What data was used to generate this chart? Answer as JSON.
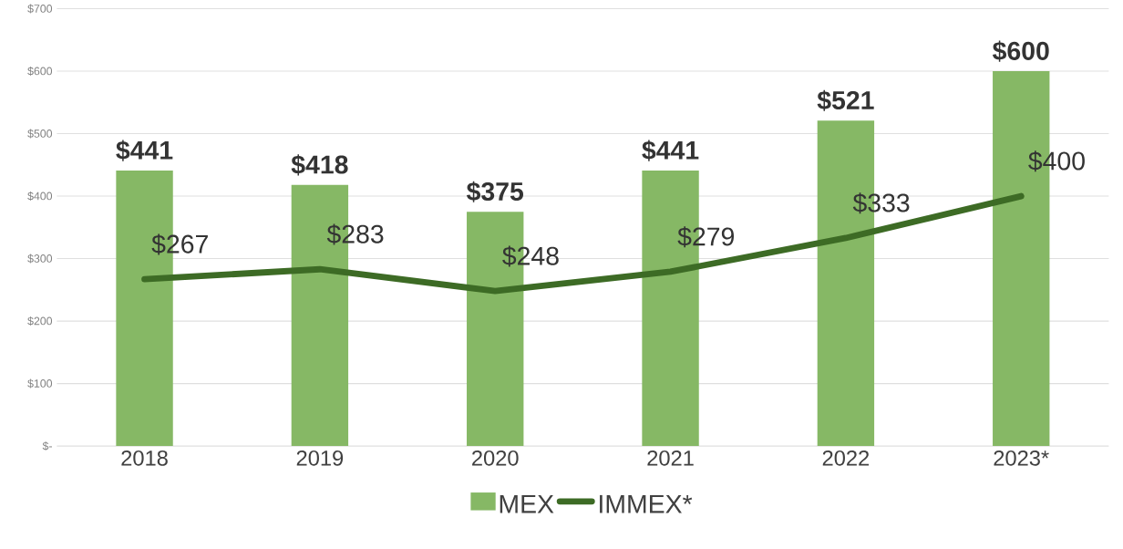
{
  "chart_data": {
    "type": "bar",
    "categories": [
      "2018",
      "2019",
      "2020",
      "2021",
      "2022",
      "2023*"
    ],
    "series": [
      {
        "name": "MEX",
        "color": "#86b865",
        "values": [
          441,
          418,
          375,
          441,
          521,
          600
        ],
        "value_labels": [
          "$441",
          "$418",
          "$375",
          "$441",
          "$521",
          "$600"
        ]
      },
      {
        "name": "IMMEX*",
        "type": "line",
        "color": "#3d6b25",
        "values": [
          267,
          283,
          248,
          279,
          333,
          400
        ],
        "value_labels": [
          "$267",
          "$283",
          "$248",
          "$279",
          "$333",
          "$400"
        ]
      }
    ],
    "ylim": [
      0,
      700
    ],
    "yticks": [
      {
        "value": 0,
        "label": "$-"
      },
      {
        "value": 100,
        "label": "$100"
      },
      {
        "value": 200,
        "label": "$200"
      },
      {
        "value": 300,
        "label": "$300"
      },
      {
        "value": 400,
        "label": "$400"
      },
      {
        "value": 500,
        "label": "$500"
      },
      {
        "value": 600,
        "label": "$600"
      },
      {
        "value": 700,
        "label": "$700"
      }
    ],
    "grid": "y",
    "legend": "bottom",
    "marker": "none",
    "line_style": "solid"
  }
}
